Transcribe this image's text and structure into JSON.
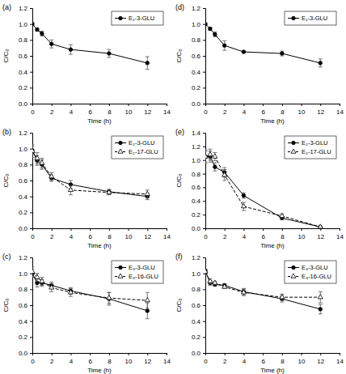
{
  "chart_data": [
    {
      "type": "line",
      "title": "(a)",
      "x_label": "Time (h)",
      "y_label": "C/C₀",
      "x": [
        0,
        0.5,
        1,
        2,
        4,
        8,
        12
      ],
      "xlim": [
        0,
        14
      ],
      "xticks": [
        0,
        2,
        4,
        6,
        8,
        10,
        12,
        14
      ],
      "ylim": [
        0,
        1.2
      ],
      "yticks": [
        {
          "value": 0,
          "label": "0.0"
        },
        {
          "value": 0.2,
          "label": "0.2"
        },
        {
          "value": 0.4,
          "label": "0.4"
        },
        {
          "value": 0.6,
          "label": "0.6"
        },
        {
          "value": 0.8,
          "label": "0.8"
        },
        {
          "value": 1.0,
          "label": "1.0"
        },
        {
          "value": 1.2,
          "label": "1.2"
        }
      ],
      "legend": "upper right",
      "series": [
        {
          "name": "E₁-3-GLU",
          "color": "#000000",
          "marker": "circle",
          "line_style": "solid",
          "values": [
            1.0,
            0.93,
            0.88,
            0.75,
            0.68,
            0.63,
            0.51
          ],
          "error": [
            0.02,
            0.02,
            0.03,
            0.05,
            0.06,
            0.05,
            0.08
          ]
        }
      ]
    },
    {
      "type": "line",
      "title": "(b)",
      "x_label": "Time (h)",
      "y_label": "C/C₀",
      "x": [
        0,
        0.5,
        1,
        2,
        4,
        8,
        12
      ],
      "xlim": [
        0,
        14
      ],
      "xticks": [
        0,
        2,
        4,
        6,
        8,
        10,
        12,
        14
      ],
      "ylim": [
        0,
        1.2
      ],
      "yticks": [
        {
          "value": 0,
          "label": "0.0"
        },
        {
          "value": 0.2,
          "label": "0.2"
        },
        {
          "value": 0.4,
          "label": "0.4"
        },
        {
          "value": 0.6,
          "label": "0.6"
        },
        {
          "value": 0.8,
          "label": "0.8"
        },
        {
          "value": 1.0,
          "label": "1.0"
        },
        {
          "value": 1.2,
          "label": "1.2"
        }
      ],
      "legend": "upper right",
      "series": [
        {
          "name": "E₂-3-GLU",
          "color": "#000000",
          "marker": "circle",
          "line_style": "solid",
          "values": [
            0.98,
            0.85,
            0.8,
            0.63,
            0.55,
            0.46,
            0.4
          ],
          "error": [
            0.05,
            0.06,
            0.06,
            0.04,
            0.05,
            0.03,
            0.04
          ]
        },
        {
          "name": "E₂-17-GLU",
          "color": "#000000",
          "marker": "triangle-open",
          "line_style": "dashed",
          "values": [
            0.97,
            0.88,
            0.82,
            0.65,
            0.48,
            0.45,
            0.43
          ],
          "error": [
            0.08,
            0.07,
            0.06,
            0.05,
            0.06,
            0.03,
            0.05
          ]
        }
      ]
    },
    {
      "type": "line",
      "title": "(c)",
      "x_label": "Time (h)",
      "y_label": "C/C₀",
      "x": [
        0,
        0.5,
        1,
        2,
        4,
        8,
        12
      ],
      "xlim": [
        0,
        14
      ],
      "xticks": [
        0,
        2,
        4,
        6,
        8,
        10,
        12,
        14
      ],
      "ylim": [
        0,
        1.2
      ],
      "yticks": [
        {
          "value": 0,
          "label": "0.0"
        },
        {
          "value": 0.2,
          "label": "0.2"
        },
        {
          "value": 0.4,
          "label": "0.4"
        },
        {
          "value": 0.6,
          "label": "0.6"
        },
        {
          "value": 0.8,
          "label": "0.8"
        },
        {
          "value": 1.0,
          "label": "1.0"
        },
        {
          "value": 1.2,
          "label": "1.2"
        }
      ],
      "legend": "upper right",
      "series": [
        {
          "name": "E₃-3-GLU",
          "color": "#000000",
          "marker": "circle",
          "line_style": "solid",
          "values": [
            1.0,
            0.88,
            0.88,
            0.85,
            0.78,
            0.68,
            0.53
          ],
          "error": [
            0.05,
            0.05,
            0.04,
            0.04,
            0.04,
            0.08,
            0.1
          ]
        },
        {
          "name": "E₃-16-GLU",
          "color": "#000000",
          "marker": "triangle-open",
          "line_style": "dashed",
          "values": [
            1.02,
            0.95,
            0.9,
            0.82,
            0.76,
            0.69,
            0.66
          ],
          "error": [
            0.06,
            0.05,
            0.05,
            0.05,
            0.05,
            0.07,
            0.1
          ]
        }
      ]
    },
    {
      "type": "line",
      "title": "(d)",
      "x_label": "Time (h)",
      "y_label": "C/C₀",
      "x": [
        0,
        0.5,
        1,
        2,
        4,
        8,
        12
      ],
      "xlim": [
        0,
        14
      ],
      "xticks": [
        0,
        2,
        4,
        6,
        8,
        10,
        12,
        14
      ],
      "ylim": [
        0,
        1.2
      ],
      "yticks": [
        {
          "value": 0,
          "label": "0.0"
        },
        {
          "value": 0.2,
          "label": "0.2"
        },
        {
          "value": 0.4,
          "label": "0.4"
        },
        {
          "value": 0.6,
          "label": "0.6"
        },
        {
          "value": 0.8,
          "label": "0.8"
        },
        {
          "value": 1.0,
          "label": "1.0"
        },
        {
          "value": 1.2,
          "label": "1.2"
        }
      ],
      "legend": "upper right",
      "series": [
        {
          "name": "E₁-3-GLU",
          "color": "#000000",
          "marker": "circle",
          "line_style": "solid",
          "values": [
            1.0,
            0.94,
            0.87,
            0.73,
            0.65,
            0.63,
            0.51
          ],
          "error": [
            0.01,
            0.02,
            0.03,
            0.06,
            0.01,
            0.03,
            0.05
          ]
        }
      ]
    },
    {
      "type": "line",
      "title": "(e)",
      "x_label": "Time (h)",
      "y_label": "C/C₀",
      "x": [
        0,
        0.5,
        1,
        2,
        4,
        8,
        12
      ],
      "xlim": [
        0,
        14
      ],
      "xticks": [
        0,
        2,
        4,
        6,
        8,
        10,
        12,
        14
      ],
      "ylim": [
        0,
        1.4
      ],
      "yticks": [
        {
          "value": 0,
          "label": "0.0"
        },
        {
          "value": 0.2,
          "label": "0.2"
        },
        {
          "value": 0.4,
          "label": "0.4"
        },
        {
          "value": 0.6,
          "label": "0.6"
        },
        {
          "value": 0.8,
          "label": "0.8"
        },
        {
          "value": 1.0,
          "label": "1.0"
        },
        {
          "value": 1.2,
          "label": "1.2"
        },
        {
          "value": 1.4,
          "label": "1.4"
        }
      ],
      "legend": "upper right",
      "series": [
        {
          "name": "E₂-3-GLU",
          "color": "#000000",
          "marker": "circle",
          "line_style": "solid",
          "values": [
            1.05,
            1.05,
            0.9,
            0.82,
            0.48,
            0.15,
            0.02
          ],
          "error": [
            0.08,
            0.08,
            0.06,
            0.07,
            0.04,
            0.02,
            0.01
          ]
        },
        {
          "name": "E₂-17-GLU",
          "color": "#000000",
          "marker": "triangle-open",
          "line_style": "dashed",
          "values": [
            1.05,
            1.08,
            1.05,
            0.78,
            0.32,
            0.18,
            0.02
          ],
          "error": [
            0.1,
            0.08,
            0.06,
            0.08,
            0.06,
            0.03,
            0.01
          ]
        }
      ]
    },
    {
      "type": "line",
      "title": "(f)",
      "x_label": "Time (h)",
      "y_label": "C/C₀",
      "x": [
        0,
        0.5,
        1,
        2,
        4,
        8,
        12
      ],
      "xlim": [
        0,
        14
      ],
      "xticks": [
        0,
        2,
        4,
        6,
        8,
        10,
        12,
        14
      ],
      "ylim": [
        0,
        1.2
      ],
      "yticks": [
        {
          "value": 0,
          "label": "0.0"
        },
        {
          "value": 0.2,
          "label": "0.2"
        },
        {
          "value": 0.4,
          "label": "0.4"
        },
        {
          "value": 0.6,
          "label": "0.6"
        },
        {
          "value": 0.8,
          "label": "0.8"
        },
        {
          "value": 1.0,
          "label": "1.0"
        },
        {
          "value": 1.2,
          "label": "1.2"
        }
      ],
      "legend": "upper right",
      "series": [
        {
          "name": "E₃-3-GLU",
          "color": "#000000",
          "marker": "circle",
          "line_style": "solid",
          "values": [
            1.03,
            0.88,
            0.86,
            0.85,
            0.77,
            0.68,
            0.55
          ],
          "error": [
            0.02,
            0.03,
            0.02,
            0.02,
            0.04,
            0.04,
            0.06
          ]
        },
        {
          "name": "E₃-16-GLU",
          "color": "#000000",
          "marker": "triangle-open",
          "line_style": "dashed",
          "values": [
            1.02,
            0.9,
            0.88,
            0.83,
            0.76,
            0.7,
            0.7
          ],
          "error": [
            0.03,
            0.03,
            0.02,
            0.02,
            0.04,
            0.04,
            0.07
          ]
        }
      ]
    }
  ]
}
